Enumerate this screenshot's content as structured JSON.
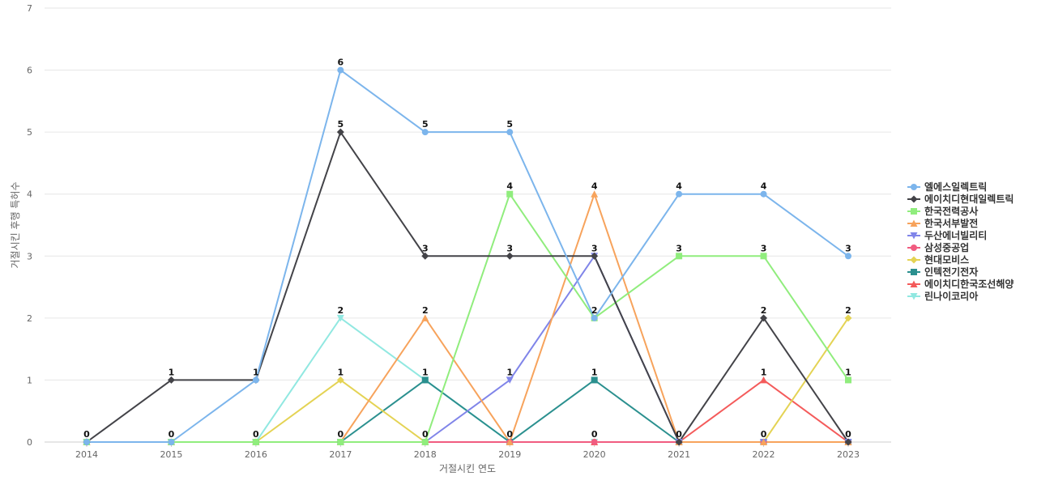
{
  "chart_data": {
    "type": "line",
    "title": "",
    "xlabel": "거절시킨 연도",
    "ylabel": "거절시킨 후행 특허수",
    "ylim": [
      0,
      7
    ],
    "yticks": [
      0,
      1,
      2,
      3,
      4,
      5,
      6,
      7
    ],
    "categories": [
      "2014",
      "2015",
      "2016",
      "2017",
      "2018",
      "2019",
      "2020",
      "2021",
      "2022",
      "2023"
    ],
    "grid": true,
    "legend_position": "right",
    "series": [
      {
        "name": "엘에스일렉트릭",
        "color": "#7cb5ec",
        "marker": "circle",
        "values": [
          0,
          0,
          1,
          6,
          5,
          5,
          2,
          4,
          4,
          3
        ],
        "label_values": true
      },
      {
        "name": "에이치디현대일렉트릭",
        "color": "#434348",
        "marker": "diamond",
        "values": [
          0,
          1,
          1,
          5,
          3,
          3,
          3,
          0,
          2,
          0
        ],
        "label_values": true
      },
      {
        "name": "한국전력공사",
        "color": "#90ed7d",
        "marker": "square",
        "values": [
          0,
          0,
          0,
          0,
          0,
          4,
          2,
          3,
          3,
          1
        ],
        "label_values": true
      },
      {
        "name": "한국서부발전",
        "color": "#f7a35c",
        "marker": "triangle",
        "values": [
          0,
          0,
          0,
          0,
          2,
          0,
          4,
          0,
          0,
          0
        ],
        "label_values": true
      },
      {
        "name": "두산에너빌리티",
        "color": "#8085e9",
        "marker": "triangle-down",
        "values": [
          0,
          0,
          0,
          0,
          0,
          1,
          3,
          0,
          0,
          0
        ],
        "label_values": true
      },
      {
        "name": "삼성중공업",
        "color": "#f15c80",
        "marker": "circle",
        "values": [
          0,
          0,
          0,
          0,
          0,
          0,
          0,
          0,
          0,
          0
        ],
        "label_values": false
      },
      {
        "name": "현대모비스",
        "color": "#e4d354",
        "marker": "diamond",
        "values": [
          0,
          0,
          0,
          1,
          0,
          0,
          0,
          0,
          0,
          2
        ],
        "label_values": true
      },
      {
        "name": "인텍전기전자",
        "color": "#2b908f",
        "marker": "square",
        "values": [
          0,
          0,
          0,
          0,
          1,
          0,
          1,
          0,
          0,
          0
        ],
        "label_values": true
      },
      {
        "name": "에이치디한국조선해양",
        "color": "#f45b5b",
        "marker": "triangle",
        "values": [
          0,
          0,
          0,
          0,
          0,
          0,
          0,
          0,
          1,
          0
        ],
        "label_values": true
      },
      {
        "name": "린나이코리아",
        "color": "#91e8e1",
        "marker": "triangle-down",
        "values": [
          0,
          0,
          0,
          2,
          1,
          0,
          0,
          0,
          0,
          0
        ],
        "label_values": true
      }
    ],
    "data_labels": [
      {
        "x": "2014",
        "y": 0,
        "text": "0"
      },
      {
        "x": "2015",
        "y": 1,
        "text": "1"
      },
      {
        "x": "2015",
        "y": 0,
        "text": "0"
      },
      {
        "x": "2016",
        "y": 1,
        "text": "1"
      },
      {
        "x": "2016",
        "y": 0,
        "text": "0"
      },
      {
        "x": "2017",
        "y": 6,
        "text": "6"
      },
      {
        "x": "2017",
        "y": 5,
        "text": "5"
      },
      {
        "x": "2017",
        "y": 2,
        "text": "2"
      },
      {
        "x": "2017",
        "y": 1,
        "text": "1"
      },
      {
        "x": "2017",
        "y": 0,
        "text": "0"
      },
      {
        "x": "2018",
        "y": 5,
        "text": "5"
      },
      {
        "x": "2018",
        "y": 3,
        "text": "3"
      },
      {
        "x": "2018",
        "y": 2,
        "text": "2"
      },
      {
        "x": "2018",
        "y": 1,
        "text": "1"
      },
      {
        "x": "2018",
        "y": 0,
        "text": "0"
      },
      {
        "x": "2019",
        "y": 5,
        "text": "5"
      },
      {
        "x": "2019",
        "y": 4,
        "text": "4"
      },
      {
        "x": "2019",
        "y": 3,
        "text": "3"
      },
      {
        "x": "2019",
        "y": 1,
        "text": "1"
      },
      {
        "x": "2019",
        "y": 0,
        "text": "0"
      },
      {
        "x": "2020",
        "y": 4,
        "text": "4"
      },
      {
        "x": "2020",
        "y": 3,
        "text": "3"
      },
      {
        "x": "2020",
        "y": 2,
        "text": "2"
      },
      {
        "x": "2020",
        "y": 1,
        "text": "1"
      },
      {
        "x": "2020",
        "y": 0,
        "text": "0"
      },
      {
        "x": "2021",
        "y": 4,
        "text": "4"
      },
      {
        "x": "2021",
        "y": 3,
        "text": "3"
      },
      {
        "x": "2021",
        "y": 0,
        "text": "0"
      },
      {
        "x": "2022",
        "y": 4,
        "text": "4"
      },
      {
        "x": "2022",
        "y": 3,
        "text": "3"
      },
      {
        "x": "2022",
        "y": 2,
        "text": "2"
      },
      {
        "x": "2022",
        "y": 1,
        "text": "1"
      },
      {
        "x": "2022",
        "y": 0,
        "text": "0"
      },
      {
        "x": "2023",
        "y": 3,
        "text": "3"
      },
      {
        "x": "2023",
        "y": 2,
        "text": "2"
      },
      {
        "x": "2023",
        "y": 1,
        "text": "1"
      },
      {
        "x": "2023",
        "y": 0,
        "text": "0"
      }
    ]
  }
}
